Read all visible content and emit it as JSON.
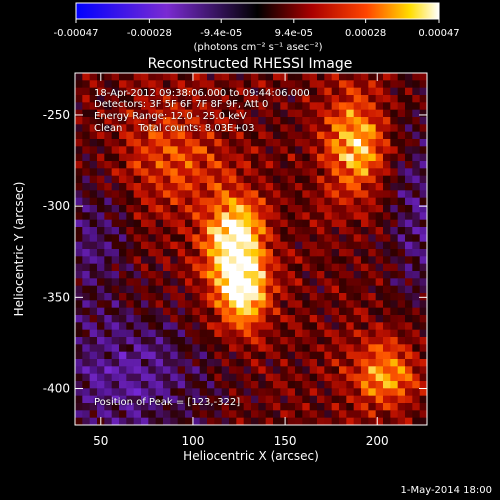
{
  "colorbar": {
    "ticks": [
      -0.00047,
      -0.00028,
      -9.4e-05,
      9.4e-05,
      0.00028,
      0.00047
    ],
    "tick_labels": [
      "-0.00047",
      "-0.00028",
      "-9.4e-05",
      "9.4e-05",
      "0.00028",
      "0.00047"
    ],
    "unit_label": "(photons cm⁻² s⁻¹ asec⁻²)",
    "range": [
      -0.00047,
      0.00047
    ]
  },
  "chart_data": {
    "type": "heatmap",
    "title": "Reconstructed RHESSI Image",
    "xlabel": "Heliocentric X (arcsec)",
    "ylabel": "Heliocentric Y (arcsec)",
    "xlim": [
      36,
      227
    ],
    "ylim": [
      -420,
      -227
    ],
    "x_ticks": [
      50,
      100,
      150,
      200
    ],
    "y_ticks": [
      -250,
      -300,
      -350,
      -400
    ],
    "peak": [
      123,
      -322
    ],
    "sources": [
      {
        "x": 123,
        "y": -322,
        "amp": 1.0,
        "sx": 12,
        "sy": 20
      },
      {
        "x": 128,
        "y": -352,
        "amp": 0.62,
        "sx": 10,
        "sy": 14
      },
      {
        "x": 188,
        "y": -266,
        "amp": 0.72,
        "sx": 12,
        "sy": 20
      },
      {
        "x": 204,
        "y": -392,
        "amp": 0.6,
        "sx": 14,
        "sy": 14
      },
      {
        "x": 88,
        "y": -270,
        "amp": 0.42,
        "sx": 20,
        "sy": 22
      }
    ]
  },
  "annotations": {
    "time_range": "18-Apr-2012 09:38:06.000 to 09:44:06.000",
    "detectors": "Detectors: 3F 5F 6F 7F 8F 9F, Att 0",
    "energy": "Energy Range: 12.0 - 25.0 keV",
    "method": "Clean     Total counts: 8.03E+03",
    "peak_text": "Position of Peak = [123,-322]"
  },
  "footer": "1-May-2014 18:00"
}
